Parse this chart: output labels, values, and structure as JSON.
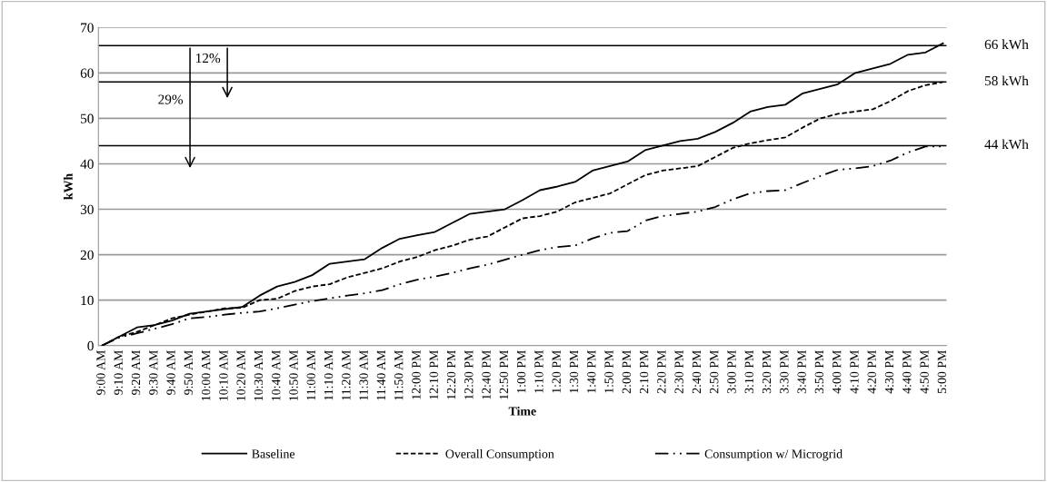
{
  "chart_data": {
    "type": "line",
    "xlabel": "Time",
    "ylabel": "kWh",
    "categories": [
      "9:00 AM",
      "9:10 AM",
      "9:20 AM",
      "9:30 AM",
      "9:40 AM",
      "9:50 AM",
      "10:00 AM",
      "10:10 AM",
      "10:20 AM",
      "10:30 AM",
      "10:40 AM",
      "10:50 AM",
      "11:00 AM",
      "11:10 AM",
      "11:20 AM",
      "11:30 AM",
      "11:40 AM",
      "11:50 AM",
      "12:00 PM",
      "12:10 PM",
      "12:20 PM",
      "12:30 PM",
      "12:40 PM",
      "12:50 PM",
      "1:00 PM",
      "1:10 PM",
      "1:20 PM",
      "1:30 PM",
      "1:40 PM",
      "1:50 PM",
      "2:00 PM",
      "2:10 PM",
      "2:20 PM",
      "2:30 PM",
      "2:40 PM",
      "2:50 PM",
      "3:00 PM",
      "3:10 PM",
      "3:20 PM",
      "3:30 PM",
      "3:40 PM",
      "3:50 PM",
      "4:00 PM",
      "4:10 PM",
      "4:20 PM",
      "4:30 PM",
      "4:40 PM",
      "4:50 PM",
      "5:00 PM"
    ],
    "series": [
      {
        "name": "Baseline",
        "color": "#000000",
        "line_style": "solid",
        "values": [
          0,
          2,
          4,
          4.5,
          5.5,
          7,
          7.5,
          8,
          8.5,
          11,
          13,
          14,
          15.5,
          18,
          18.5,
          19,
          21.5,
          23.5,
          24.3,
          25,
          27,
          29,
          29.5,
          30,
          32,
          34.2,
          35,
          36,
          38.5,
          39.5,
          40.5,
          43,
          44,
          45,
          45.5,
          47,
          49,
          51.5,
          52.5,
          53,
          55.5,
          56.5,
          57.5,
          60,
          61,
          62,
          64,
          64.5,
          66.5
        ]
      },
      {
        "name": "Overall Consumption",
        "color": "#000000",
        "line_style": "dashed",
        "values": [
          0,
          2,
          3,
          4.5,
          6,
          6.8,
          7.5,
          8.2,
          8.3,
          10,
          10.3,
          12,
          13,
          13.5,
          15,
          16,
          17,
          18.5,
          19.5,
          21,
          22,
          23.3,
          24,
          26,
          28,
          28.5,
          29.5,
          31.5,
          32.5,
          33.5,
          35.5,
          37.5,
          38.5,
          39,
          39.5,
          41.5,
          43.5,
          44.5,
          45.2,
          45.8,
          48,
          50,
          51,
          51.5,
          52,
          53.8,
          56,
          57.3,
          58
        ]
      },
      {
        "name": "Consumption w/ Microgrid",
        "color": "#000000",
        "line_style": "dashdotdot",
        "values": [
          0,
          1.8,
          2.7,
          3.7,
          4.7,
          6,
          6.3,
          6.8,
          7.2,
          7.5,
          8.2,
          9,
          9.8,
          10.4,
          11,
          11.5,
          12.2,
          13.5,
          14.5,
          15.2,
          16,
          17,
          17.8,
          18.9,
          20,
          21,
          21.7,
          22,
          23.6,
          24.8,
          25.2,
          27.5,
          28.5,
          29,
          29.5,
          30.5,
          32.2,
          33.5,
          34,
          34.2,
          35.8,
          37.3,
          38.7,
          39,
          39.5,
          40.7,
          42.5,
          43.8,
          43.8
        ]
      }
    ],
    "ylim": [
      0,
      70
    ],
    "yticks": [
      0,
      10,
      20,
      30,
      40,
      50,
      60,
      70
    ],
    "grid": "y",
    "legend": "bottom",
    "marker": "none",
    "ref_lines": [
      {
        "axis": "y",
        "value": 66,
        "label": "66 kWh",
        "color": "#000000"
      },
      {
        "axis": "y",
        "value": 58,
        "label": "58 kWh",
        "color": "#000000"
      },
      {
        "axis": "y",
        "value": 44,
        "label": "44 kWh",
        "color": "#000000"
      }
    ],
    "annotations": [
      "29%",
      "12%"
    ]
  }
}
